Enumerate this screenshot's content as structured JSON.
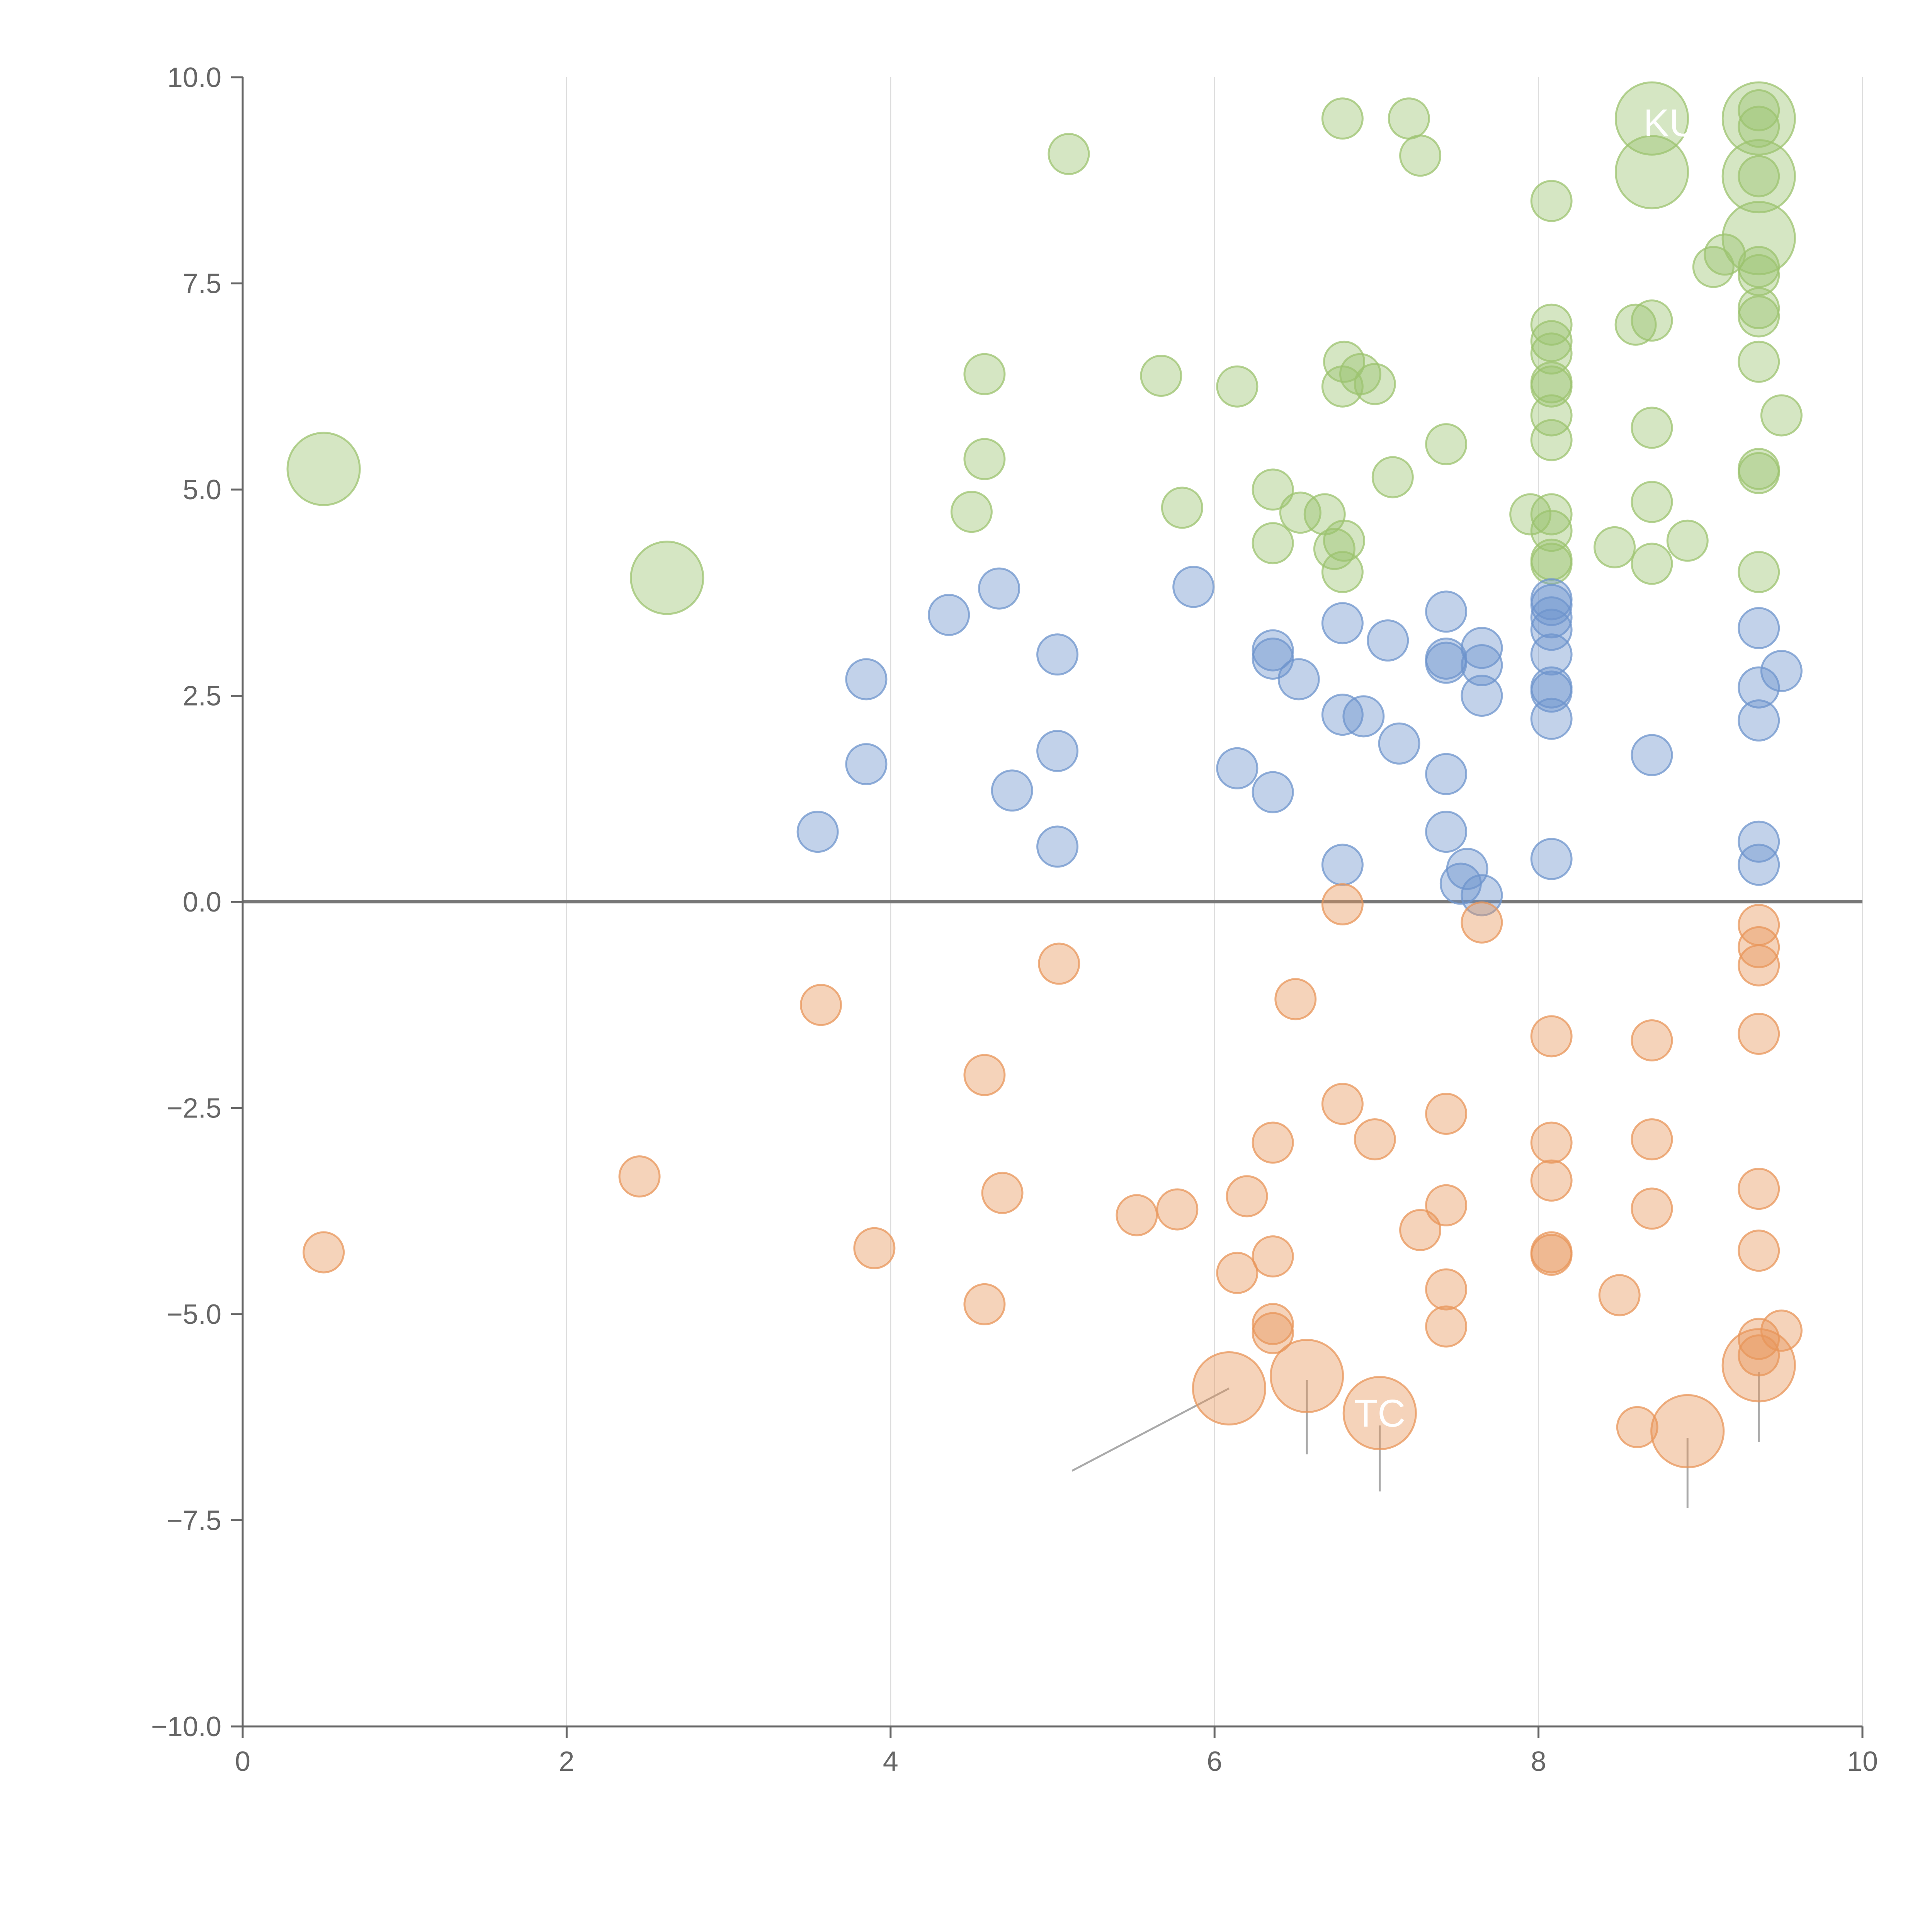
{
  "chart_data": {
    "type": "scatter",
    "title": "",
    "xlabel": "",
    "ylabel": "",
    "xlim": [
      0,
      10
    ],
    "ylim": [
      -10,
      10
    ],
    "x_ticks": [
      "0",
      "2",
      "4",
      "6",
      "8",
      "10"
    ],
    "y_ticks": [
      "10.0",
      "7.5",
      "5.0",
      "2.5",
      "0.0",
      "−2.5",
      "−5.0",
      "−7.5",
      "−10.0"
    ],
    "x_tick_values": [
      0,
      2,
      4,
      6,
      8,
      10
    ],
    "y_tick_values": [
      10,
      7.5,
      5,
      2.5,
      0,
      -2.5,
      -5,
      -7.5,
      -10
    ],
    "grid": "vertical",
    "zero_line": 0,
    "colors": {
      "green": "#9cc36f",
      "blue": "#6e94cc",
      "orange": "#e8965a",
      "axis": "#666666",
      "grid": "#dddddd",
      "zero": "#777777"
    },
    "series": [
      {
        "name": "green",
        "color": "#9cc36f",
        "points": [
          [
            0.5,
            5.25,
            1.8
          ],
          [
            2.62,
            3.93,
            1.8
          ],
          [
            5.1,
            9.07,
            1
          ],
          [
            6.79,
            9.5,
            1
          ],
          [
            7.2,
            9.5,
            1
          ],
          [
            7.27,
            9.05,
            1
          ],
          [
            8.08,
            8.5,
            1
          ],
          [
            8.7,
            9.5,
            1.8
          ],
          [
            8.7,
            8.85,
            1.8
          ],
          [
            9.36,
            9.5,
            1.8
          ],
          [
            9.36,
            8.8,
            1.8
          ],
          [
            9.36,
            8.05,
            1.8
          ],
          [
            9.36,
            9.6,
            1
          ],
          [
            9.36,
            9.4,
            1
          ],
          [
            9.36,
            8.8,
            1
          ],
          [
            9.08,
            7.7,
            1
          ],
          [
            9.15,
            7.85,
            1
          ],
          [
            9.36,
            7.7,
            1
          ],
          [
            9.36,
            7.6,
            1
          ],
          [
            9.36,
            7.2,
            1
          ],
          [
            9.36,
            7.1,
            1
          ],
          [
            9.36,
            6.55,
            1
          ],
          [
            9.5,
            5.9,
            1
          ],
          [
            9.36,
            5.2,
            1
          ],
          [
            9.36,
            5.25,
            1
          ],
          [
            9.36,
            4.0,
            1
          ],
          [
            8.7,
            7.05,
            1
          ],
          [
            8.6,
            7.0,
            1
          ],
          [
            8.7,
            5.75,
            1
          ],
          [
            8.7,
            4.85,
            1
          ],
          [
            8.7,
            4.1,
            1
          ],
          [
            8.92,
            4.38,
            1
          ],
          [
            8.47,
            4.3,
            1
          ],
          [
            8.08,
            7.0,
            1
          ],
          [
            8.08,
            6.8,
            1
          ],
          [
            8.08,
            6.65,
            1
          ],
          [
            8.08,
            6.3,
            1
          ],
          [
            8.08,
            6.25,
            1
          ],
          [
            8.08,
            5.9,
            1
          ],
          [
            8.08,
            5.6,
            1
          ],
          [
            8.08,
            4.7,
            1
          ],
          [
            8.08,
            4.5,
            1
          ],
          [
            8.08,
            4.15,
            1
          ],
          [
            8.08,
            4.1,
            1
          ],
          [
            7.95,
            4.7,
            1
          ],
          [
            7.43,
            5.55,
            1
          ],
          [
            7.1,
            5.15,
            1
          ],
          [
            6.8,
            6.55,
            1
          ],
          [
            6.9,
            6.4,
            1
          ],
          [
            6.79,
            6.25,
            1
          ],
          [
            6.99,
            6.28,
            1
          ],
          [
            6.14,
            6.25,
            1
          ],
          [
            5.67,
            6.38,
            1
          ],
          [
            4.58,
            6.4,
            1
          ],
          [
            4.58,
            5.37,
            1
          ],
          [
            4.5,
            4.73,
            1
          ],
          [
            5.8,
            4.78,
            1
          ],
          [
            6.36,
            5.0,
            1
          ],
          [
            6.36,
            4.35,
            1
          ],
          [
            6.53,
            4.72,
            1
          ],
          [
            6.68,
            4.7,
            1
          ],
          [
            6.8,
            4.38,
            1
          ],
          [
            6.74,
            4.28,
            1
          ],
          [
            6.79,
            4.0,
            1
          ]
        ]
      },
      {
        "name": "blue",
        "color": "#6e94cc",
        "points": [
          [
            3.55,
            0.85,
            1
          ],
          [
            3.85,
            1.67,
            1
          ],
          [
            3.85,
            2.7,
            1
          ],
          [
            4.36,
            3.48,
            1
          ],
          [
            4.67,
            3.8,
            1
          ],
          [
            4.75,
            1.35,
            1
          ],
          [
            5.03,
            3.0,
            1
          ],
          [
            5.03,
            1.83,
            1
          ],
          [
            5.03,
            0.67,
            1
          ],
          [
            5.87,
            3.82,
            1
          ],
          [
            6.14,
            1.62,
            1
          ],
          [
            6.36,
            3.05,
            1
          ],
          [
            6.36,
            2.95,
            1
          ],
          [
            6.36,
            1.33,
            1
          ],
          [
            6.52,
            2.7,
            1
          ],
          [
            6.79,
            3.38,
            1
          ],
          [
            6.79,
            2.27,
            1
          ],
          [
            6.79,
            0.45,
            1
          ],
          [
            6.92,
            2.25,
            1
          ],
          [
            7.07,
            3.17,
            1
          ],
          [
            7.14,
            1.92,
            1
          ],
          [
            7.43,
            3.52,
            1
          ],
          [
            7.43,
            2.95,
            1
          ],
          [
            7.43,
            2.9,
            1
          ],
          [
            7.43,
            1.55,
            1
          ],
          [
            7.43,
            0.85,
            1
          ],
          [
            7.52,
            0.22,
            1
          ],
          [
            7.56,
            0.4,
            1
          ],
          [
            7.65,
            3.08,
            1
          ],
          [
            7.65,
            2.87,
            1
          ],
          [
            7.65,
            2.5,
            1
          ],
          [
            7.65,
            0.08,
            1
          ],
          [
            8.08,
            3.67,
            1
          ],
          [
            8.08,
            3.6,
            1
          ],
          [
            8.08,
            3.45,
            1
          ],
          [
            8.08,
            3.3,
            1
          ],
          [
            8.08,
            3.0,
            1
          ],
          [
            8.08,
            2.6,
            1
          ],
          [
            8.08,
            2.55,
            1
          ],
          [
            8.08,
            2.22,
            1
          ],
          [
            8.08,
            0.52,
            1
          ],
          [
            8.7,
            1.78,
            1
          ],
          [
            9.36,
            3.32,
            1
          ],
          [
            9.36,
            2.6,
            1
          ],
          [
            9.36,
            2.2,
            1
          ],
          [
            9.36,
            0.73,
            1
          ],
          [
            9.36,
            0.45,
            1
          ],
          [
            9.5,
            2.8,
            1
          ]
        ]
      },
      {
        "name": "orange",
        "color": "#e8965a",
        "points": [
          [
            0.5,
            -4.25,
            1
          ],
          [
            2.45,
            -3.33,
            1
          ],
          [
            3.57,
            -1.25,
            1
          ],
          [
            3.9,
            -4.2,
            1
          ],
          [
            4.58,
            -2.1,
            1
          ],
          [
            4.69,
            -3.53,
            1
          ],
          [
            4.58,
            -4.88,
            1
          ],
          [
            5.04,
            -0.75,
            1
          ],
          [
            5.52,
            -3.8,
            1
          ],
          [
            5.77,
            -3.73,
            1
          ],
          [
            6.09,
            -5.9,
            1.8
          ],
          [
            6.14,
            -4.5,
            1
          ],
          [
            6.2,
            -3.57,
            1
          ],
          [
            6.36,
            -2.92,
            1
          ],
          [
            6.36,
            -4.3,
            1
          ],
          [
            6.36,
            -5.12,
            1
          ],
          [
            6.36,
            -5.23,
            1
          ],
          [
            6.5,
            -1.18,
            1
          ],
          [
            6.57,
            -5.75,
            1.8
          ],
          [
            6.79,
            -0.03,
            1
          ],
          [
            6.79,
            -2.45,
            1
          ],
          [
            6.99,
            -2.88,
            1
          ],
          [
            7.02,
            -6.2,
            1.8
          ],
          [
            7.27,
            -3.98,
            1
          ],
          [
            7.43,
            -2.57,
            1
          ],
          [
            7.43,
            -3.68,
            1
          ],
          [
            7.43,
            -4.7,
            1
          ],
          [
            7.43,
            -5.15,
            1
          ],
          [
            7.65,
            -0.25,
            1
          ],
          [
            8.08,
            -1.63,
            1
          ],
          [
            8.08,
            -2.92,
            1
          ],
          [
            8.08,
            -3.38,
            1
          ],
          [
            8.08,
            -4.25,
            1
          ],
          [
            8.08,
            -4.28,
            1
          ],
          [
            8.5,
            -4.77,
            1
          ],
          [
            8.61,
            -6.37,
            1
          ],
          [
            8.7,
            -1.68,
            1
          ],
          [
            8.7,
            -2.88,
            1
          ],
          [
            8.7,
            -3.72,
            1
          ],
          [
            8.92,
            -6.42,
            1.8
          ],
          [
            9.36,
            -0.28,
            1
          ],
          [
            9.36,
            -0.55,
            1
          ],
          [
            9.36,
            -0.77,
            1
          ],
          [
            9.36,
            -1.6,
            1
          ],
          [
            9.36,
            -3.48,
            1
          ],
          [
            9.36,
            -4.23,
            1
          ],
          [
            9.36,
            -5.3,
            1
          ],
          [
            9.36,
            -5.5,
            1
          ],
          [
            9.36,
            -5.62,
            1.8
          ],
          [
            9.5,
            -5.2,
            1
          ]
        ]
      }
    ],
    "annotations": [
      {
        "text": "TC",
        "x": 7.02,
        "y": -6.2
      },
      {
        "text": "KUR",
        "x": 8.9,
        "y": 9.45
      }
    ],
    "leader_lines": [
      [
        6.09,
        -5.9,
        5.12,
        -6.9
      ],
      [
        6.57,
        -5.8,
        6.57,
        -6.7
      ],
      [
        7.02,
        -6.35,
        7.02,
        -7.15
      ],
      [
        8.92,
        -6.5,
        8.92,
        -7.35
      ],
      [
        9.36,
        -5.7,
        9.36,
        -6.55
      ]
    ]
  }
}
